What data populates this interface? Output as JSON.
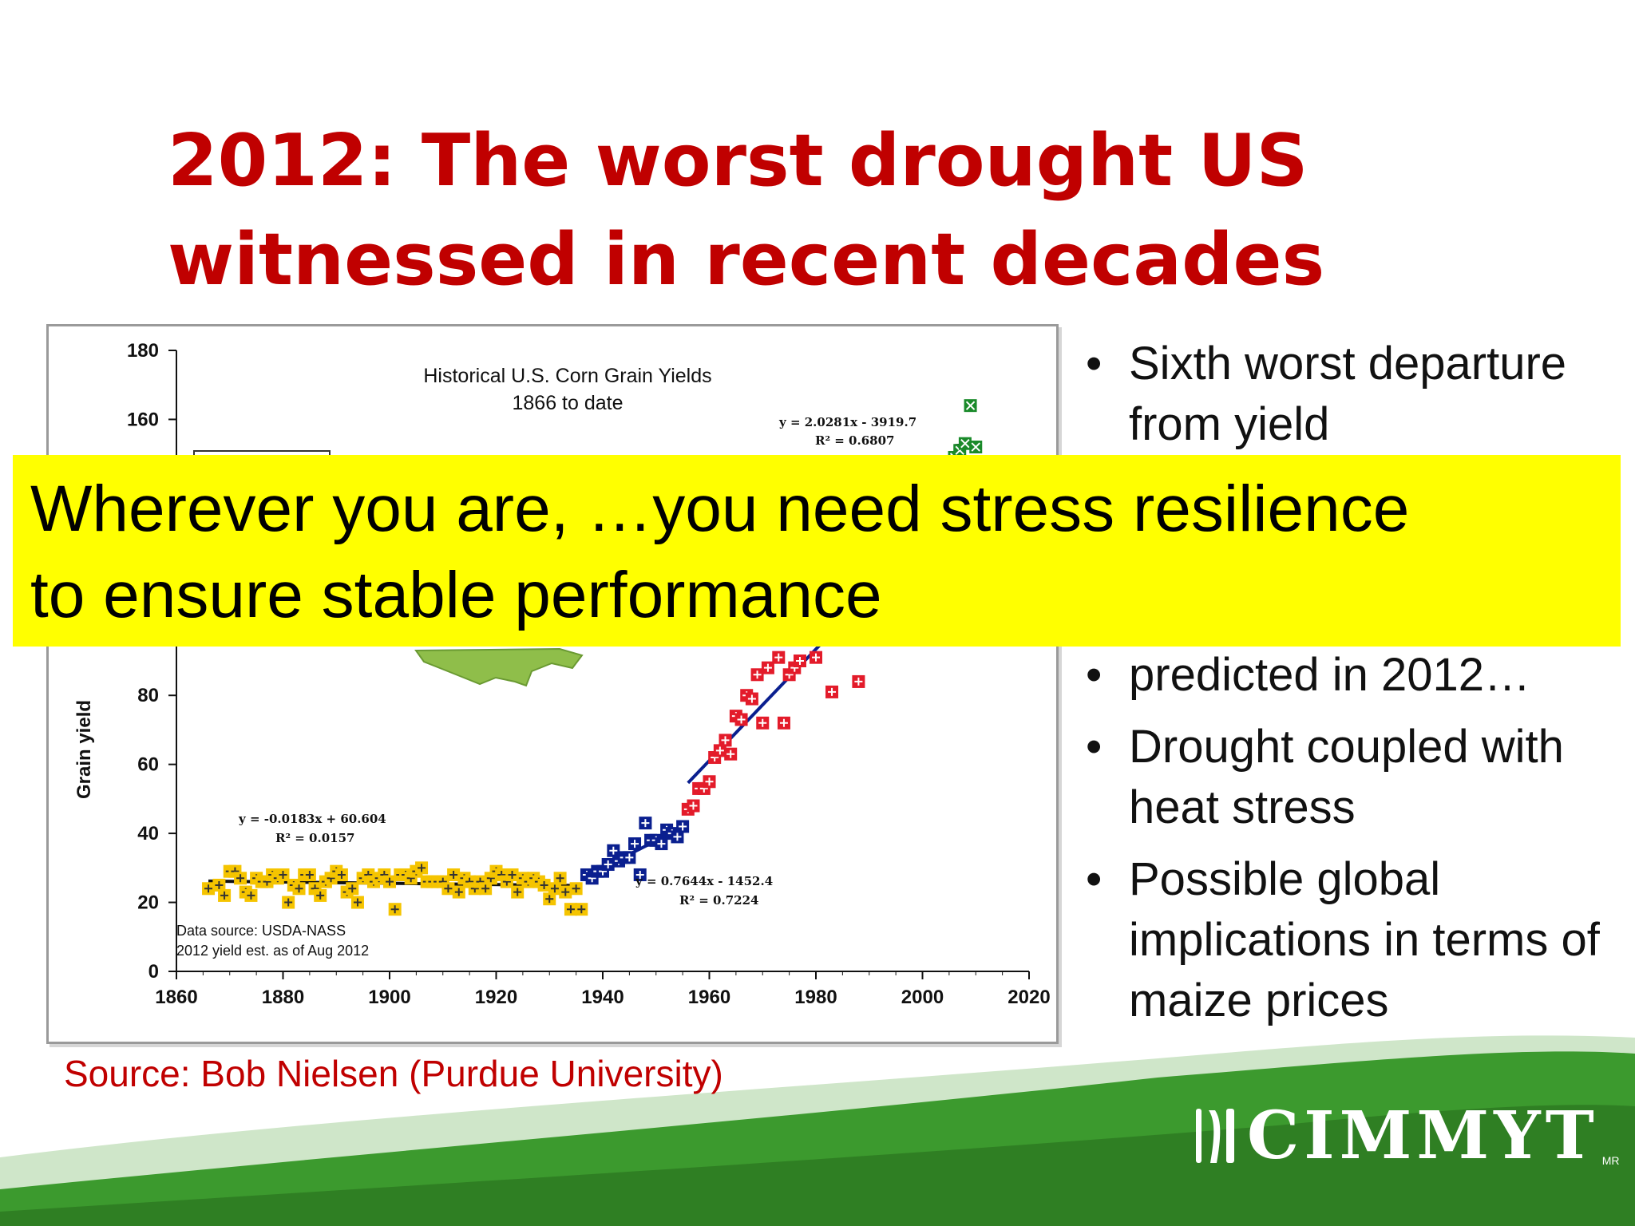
{
  "slide": {
    "title_line1": "2012: The worst drought US",
    "title_line2": "witnessed in recent decades",
    "bullets": [
      "Sixth worst departure from yield",
      "predicted in 2012…",
      "Drought coupled with heat stress",
      "Possible global implications in terms of maize prices"
    ],
    "banner_line1": "Wherever you are, …you need stress resilience",
    "banner_line2": "to ensure stable performance",
    "source": "Source: Bob Nielsen (Purdue University)",
    "logo_text": "CIMMYT",
    "logo_mark": "MR"
  },
  "colors": {
    "title_red": "#c00000",
    "banner_yellow": "#ffff00",
    "footer_green": "#3c9a2e",
    "era1": "#f5c400",
    "era2": "#0a1f8f",
    "era3": "#e31b2a",
    "era4": "#1a8a2a"
  },
  "chart_data": {
    "type": "scatter",
    "title": "Historical U.S. Corn Grain Yields",
    "subtitle": "1866 to date",
    "ylabel": "Grain yield",
    "xlim": [
      1860,
      2020
    ],
    "ylim": [
      0,
      180
    ],
    "x_ticks": [
      "1860",
      "1880",
      "1900",
      "1920",
      "1940",
      "1960",
      "1980",
      "2000",
      "2020"
    ],
    "y_ticks": [
      "0",
      "20",
      "40",
      "60",
      "80",
      "160",
      "180"
    ],
    "annotations": [
      "Data source: USDA-NASS",
      "2012 yield est. as of Aug 2012"
    ],
    "series": [
      {
        "equation": "y = -0.0183x + 60.604",
        "r2": "R² = 0.0157",
        "x": [
          1866,
          1868,
          1869,
          1870,
          1871,
          1872,
          1873,
          1874,
          1875,
          1876,
          1877,
          1878,
          1879,
          1880,
          1881,
          1882,
          1883,
          1884,
          1885,
          1886,
          1887,
          1888,
          1889,
          1890,
          1891,
          1892,
          1893,
          1894,
          1895,
          1896,
          1897,
          1898,
          1899,
          1900,
          1901,
          1902,
          1903,
          1904,
          1905,
          1906,
          1907,
          1908,
          1909,
          1910,
          1911,
          1912,
          1913,
          1914,
          1915,
          1916,
          1917,
          1918,
          1919,
          1920,
          1921,
          1922,
          1923,
          1924,
          1925,
          1926,
          1927,
          1928,
          1929,
          1930,
          1931,
          1932,
          1933,
          1934,
          1935,
          1936
        ],
        "y": [
          24,
          25,
          22,
          29,
          29,
          27,
          23,
          22,
          27,
          26,
          26,
          28,
          27,
          28,
          20,
          25,
          24,
          28,
          28,
          24,
          22,
          26,
          27,
          29,
          28,
          23,
          24,
          20,
          27,
          28,
          26,
          27,
          28,
          26,
          18,
          28,
          28,
          27,
          29,
          30,
          26,
          26,
          26,
          26,
          24,
          28,
          23,
          27,
          26,
          24,
          26,
          24,
          27,
          29,
          28,
          26,
          28,
          23,
          27,
          26,
          27,
          26,
          25,
          21,
          24,
          27,
          23,
          18,
          24,
          18
        ]
      },
      {
        "equation": "y = 0.7644x - 1452.4",
        "r2": "R² = 0.7224",
        "x": [
          1937,
          1938,
          1939,
          1940,
          1941,
          1942,
          1943,
          1944,
          1945,
          1946,
          1947,
          1948,
          1949,
          1950,
          1951,
          1952,
          1953,
          1954,
          1955
        ],
        "y": [
          28,
          27,
          29,
          29,
          31,
          35,
          32,
          33,
          33,
          37,
          28,
          43,
          38,
          38,
          37,
          41,
          40,
          39,
          42
        ]
      },
      {
        "equation": "",
        "r2": "",
        "x": [
          1956,
          1957,
          1958,
          1959,
          1960,
          1961,
          1962,
          1963,
          1964,
          1965,
          1966,
          1967,
          1968,
          1969,
          1970,
          1971,
          1972,
          1973,
          1974,
          1975,
          1976,
          1977,
          1978,
          1979,
          1980,
          1983,
          1988
        ],
        "y": [
          47,
          48,
          53,
          53,
          55,
          62,
          64,
          67,
          63,
          74,
          73,
          80,
          79,
          86,
          72,
          88,
          97,
          91,
          72,
          86,
          88,
          90,
          101,
          110,
          91,
          81,
          84
        ]
      },
      {
        "equation": "y = 2.0281x - 3919.7",
        "r2": "R² = 0.6807",
        "x": [
          2006,
          2007,
          2008,
          2009,
          2010,
          2011
        ],
        "y": [
          149,
          151,
          153,
          164,
          152,
          147
        ]
      }
    ]
  }
}
